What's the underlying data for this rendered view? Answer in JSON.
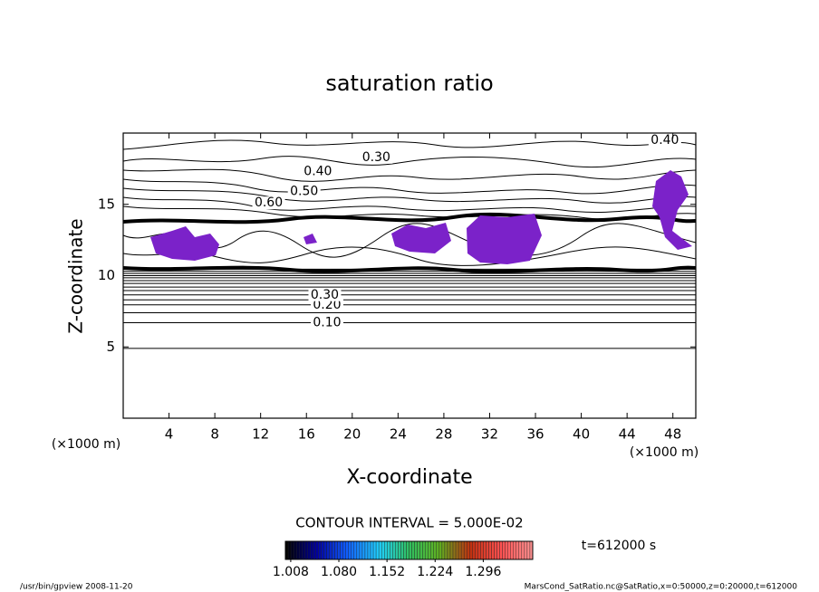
{
  "chart_data": {
    "type": "contour",
    "title": "saturation ratio",
    "x_label": "X-coordinate",
    "y_label": "Z-coordinate",
    "x_unit": "(×1000 m)",
    "y_unit": "(×1000 m)",
    "xlim": [
      0,
      50
    ],
    "xticks": [
      4,
      8,
      12,
      16,
      20,
      24,
      28,
      32,
      36,
      40,
      44,
      48
    ],
    "ylim": [
      0,
      20
    ],
    "yticks": [
      5,
      10,
      15
    ],
    "contours": [
      {
        "level": 0.05,
        "z": 4.9
      },
      {
        "level": 0.1,
        "z": 6.7
      },
      {
        "level": 0.15,
        "z": 7.4
      },
      {
        "level": 0.2,
        "z": 7.95
      },
      {
        "level": 0.25,
        "z": 8.3
      },
      {
        "level": 0.3,
        "z": 8.65
      },
      {
        "level": 0.35,
        "z": 8.95
      },
      {
        "level": 0.4,
        "z": 9.2
      },
      {
        "level": 0.45,
        "z": 9.45
      },
      {
        "level": 0.5,
        "z": 9.65
      },
      {
        "level": 0.55,
        "z": 9.85
      },
      {
        "level": 0.6,
        "z": 10.0
      },
      {
        "level": 0.65,
        "z": 10.15
      },
      {
        "level": 0.7,
        "z": 10.3
      },
      {
        "level": 0.75,
        "z": 10.45
      }
    ],
    "contour_labels": [
      {
        "value": 0.1,
        "label": "0.10",
        "x": 17.8,
        "z": 6.7
      },
      {
        "value": 0.2,
        "label": "0.20",
        "x": 17.8,
        "z": 7.95
      },
      {
        "value": 0.3,
        "label": "0.30",
        "x": 17.6,
        "z": 8.65
      },
      {
        "value": 0.3,
        "label": "0.30",
        "x": 22.1,
        "z": 18.3
      },
      {
        "value": 0.4,
        "label": "0.40",
        "x": 17.0,
        "z": 17.3
      },
      {
        "value": 0.5,
        "label": "0.50",
        "x": 15.8,
        "z": 15.9
      },
      {
        "value": 0.6,
        "label": "0.60",
        "x": 12.7,
        "z": 15.1
      },
      {
        "value": 0.4,
        "label": "0.40",
        "x": 47.3,
        "z": 19.5
      }
    ],
    "contour_interval_label": "CONTOUR INTERVAL = 5.000E-02",
    "shade_color": "#7b22c9",
    "clim": [
      1.0,
      1.37
    ],
    "cticks": [
      1.008,
      {
        "value": 1.08,
        "label": "1.080"
      },
      1.152,
      1.224,
      1.296
    ],
    "colorbar_colors": [
      "#000000",
      "#0000a0",
      "#1060ff",
      "#20d0ff",
      "#30c060",
      "#60b020",
      "#c03010",
      "#ff5050",
      "#ff9090"
    ],
    "time_label": "t=612000 s",
    "footer_left": "/usr/bin/gpview   2008-11-20",
    "footer_right": "MarsCond_SatRatio.nc@SatRatio,x=0:50000,z=0:20000,t=612000"
  }
}
